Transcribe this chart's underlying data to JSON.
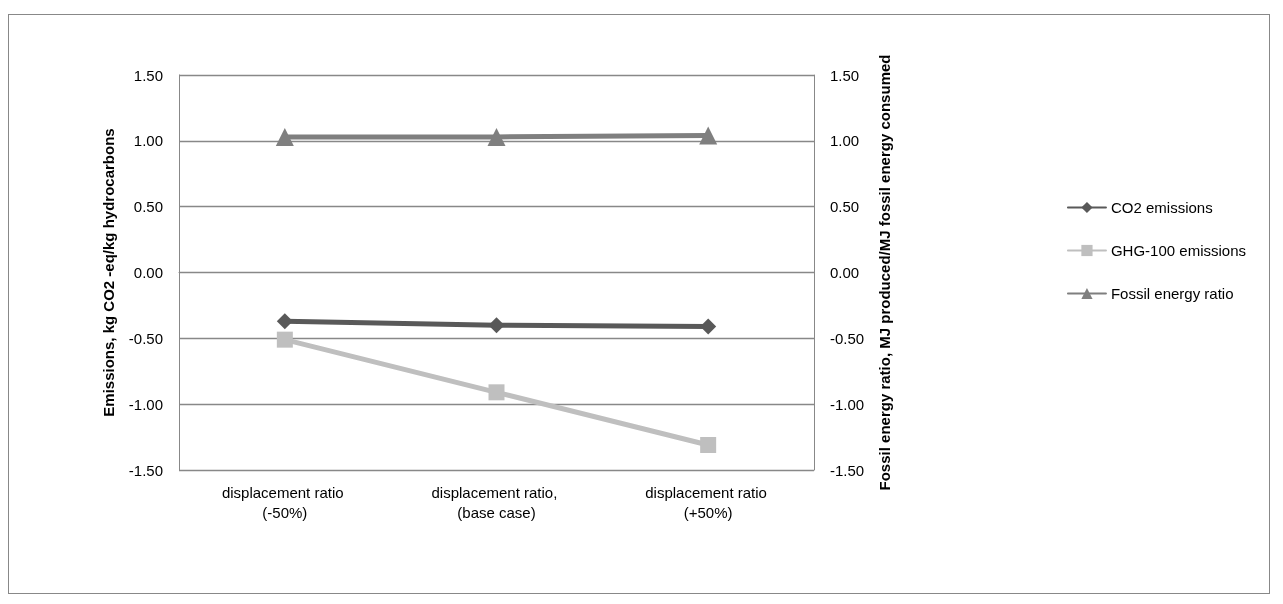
{
  "chart_data": {
    "type": "line",
    "categories": [
      "displacement ratio (-50%)",
      "displacement ratio, (base case)",
      "displacement ratio (+50%)"
    ],
    "ylabel": "Emissions, kg CO2 -eq/kg hydrocarbons",
    "y2label": "Fossil energy ratio, MJ produced/MJ fossil energy consumed",
    "ylim": [
      -1.5,
      1.5
    ],
    "yticks": [
      {
        "value": -1.5,
        "label": "-1.50"
      },
      {
        "value": -1,
        "label": "-1.00"
      },
      {
        "value": -0.5,
        "label": "-0.50"
      },
      {
        "value": 0,
        "label": "0.00"
      },
      {
        "value": 0.5,
        "label": "0.50"
      },
      {
        "value": 1,
        "label": "1.00"
      },
      {
        "value": 1.5,
        "label": "1.50"
      }
    ],
    "y2lim": [
      -1.5,
      1.5
    ],
    "y2ticks": [
      {
        "value": -1.5,
        "label": "-1.50"
      },
      {
        "value": -1,
        "label": "-1.00"
      },
      {
        "value": -0.5,
        "label": "-0.50"
      },
      {
        "value": 0,
        "label": "0.00"
      },
      {
        "value": 0.5,
        "label": "0.50"
      },
      {
        "value": 1,
        "label": "1.00"
      },
      {
        "value": 1.5,
        "label": "1.50"
      }
    ],
    "grid": "y",
    "legend": "right",
    "line_style": "solid",
    "series": [
      {
        "name": "CO2 emissions",
        "color": "#595959",
        "marker": "diamond",
        "values": [
          -0.37,
          -0.4,
          -0.41
        ]
      },
      {
        "name": "GHG-100 emissions",
        "color": "#bfbfbf",
        "marker": "square",
        "values": [
          -0.51,
          -0.91,
          -1.31
        ]
      },
      {
        "name": "Fossil energy ratio",
        "color": "#7f7f7f",
        "marker": "triangle",
        "axis": "y2",
        "values": [
          1.03,
          1.03,
          1.04
        ]
      }
    ]
  }
}
